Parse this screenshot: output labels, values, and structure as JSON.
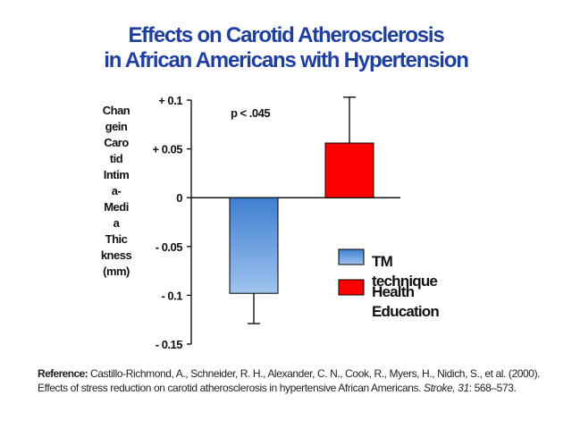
{
  "title_line1": "Effects on Carotid Atherosclerosis",
  "title_line2": "in African Americans with Hypertension",
  "ylabel_lines": [
    "Chan",
    "gein",
    "Caro",
    "tid",
    "Intim",
    "a-",
    "Medi",
    "a",
    "Thic",
    "kness",
    "(mm)"
  ],
  "annotation": "p < .045",
  "reference": {
    "label": "Reference:",
    "text_before_journal": "Castillo-Richmond, A., Schneider, R. H., Alexander, C. N., Cook, R., Myers, H., Nidich, S., et al. (2000). Effects of stress reduction on carotid atherosclerosis in hypertensive African Americans. ",
    "journal": "Stroke, 31",
    "text_after_journal": ": 568–573."
  },
  "colors": {
    "title": "#1f3f9f",
    "tm_bar_top": "#3f7fd0",
    "tm_bar_bottom": "#9fc3ee",
    "he_bar": "#ff0000",
    "axis": "#000000"
  },
  "chart_data": {
    "type": "bar",
    "categories": [
      "TM technique",
      "Health Education"
    ],
    "values": [
      -0.098,
      0.056
    ],
    "error_upper": [
      -0.098,
      0.103
    ],
    "error_lower": [
      -0.129,
      0.056
    ],
    "ylim": [
      -0.15,
      0.1
    ],
    "yticks": [
      0.1,
      0.05,
      0,
      -0.05,
      -0.1,
      -0.15
    ],
    "ytick_labels": [
      "+ 0.1",
      "+ 0.05",
      "0",
      "- 0.05",
      "- 0.1",
      "- 0.15"
    ],
    "legend": [
      "TM technique",
      "Health Education"
    ],
    "legend_placement": "right",
    "grid": false
  }
}
